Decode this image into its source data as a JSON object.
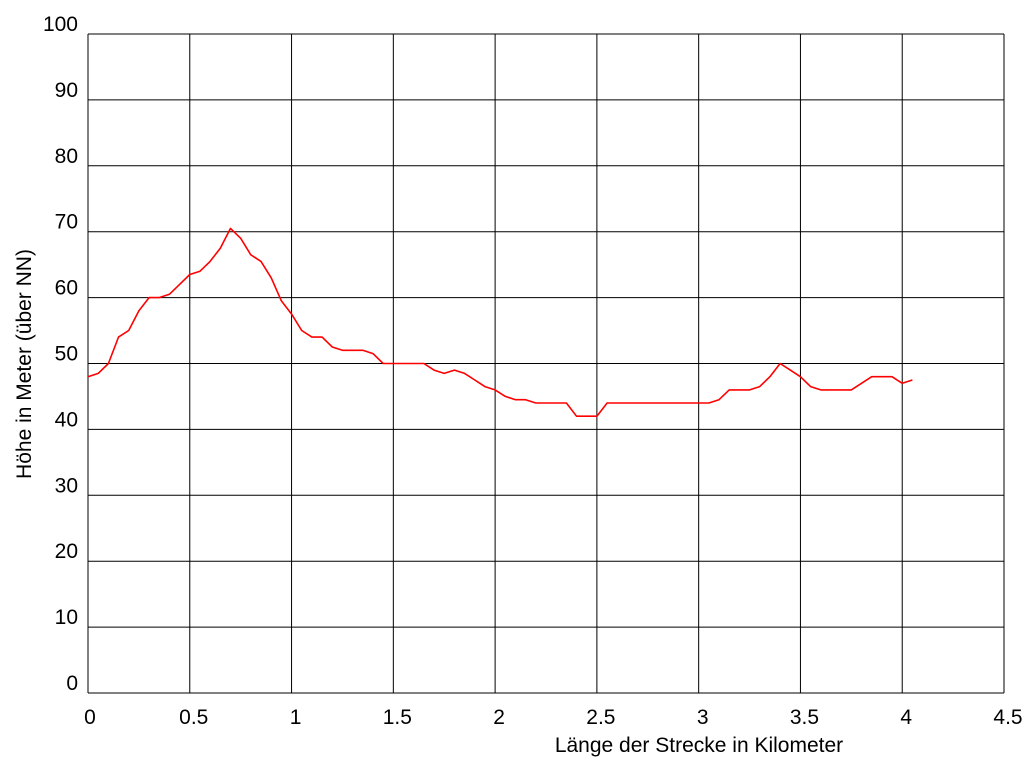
{
  "chart_data": {
    "type": "line",
    "title": "",
    "xlabel": "Länge der Strecke in Kilometer",
    "ylabel": "Höhe in Meter (über NN)",
    "xlim": [
      0,
      4.5
    ],
    "ylim": [
      0,
      100
    ],
    "x_ticks": [
      "0",
      "0.5",
      "1",
      "1.5",
      "2",
      "2.5",
      "3",
      "3.5",
      "4",
      "4.5"
    ],
    "y_ticks": [
      "0",
      "10",
      "20",
      "30",
      "40",
      "50",
      "60",
      "70",
      "80",
      "90",
      "100"
    ],
    "grid": true,
    "line_color": "#ff0000",
    "grid_color": "#000000",
    "series": [
      {
        "x": [
          0,
          0.05,
          0.1,
          0.15,
          0.2,
          0.25,
          0.3,
          0.35,
          0.4,
          0.45,
          0.5,
          0.55,
          0.6,
          0.65,
          0.7,
          0.75,
          0.8,
          0.85,
          0.9,
          0.95,
          1.0,
          1.05,
          1.1,
          1.15,
          1.2,
          1.25,
          1.3,
          1.35,
          1.4,
          1.45,
          1.5,
          1.55,
          1.6,
          1.65,
          1.7,
          1.75,
          1.8,
          1.85,
          1.9,
          1.95,
          2.0,
          2.05,
          2.1,
          2.15,
          2.2,
          2.25,
          2.3,
          2.35,
          2.4,
          2.45,
          2.5,
          2.55,
          2.6,
          2.65,
          2.7,
          2.75,
          2.8,
          2.85,
          2.9,
          2.95,
          3.0,
          3.05,
          3.1,
          3.15,
          3.2,
          3.25,
          3.3,
          3.35,
          3.4,
          3.45,
          3.5,
          3.55,
          3.6,
          3.65,
          3.7,
          3.75,
          3.8,
          3.85,
          3.9,
          3.95,
          4.0,
          4.05
        ],
        "y": [
          48,
          48.5,
          50,
          54,
          55,
          58,
          60,
          60,
          60.5,
          62,
          63.5,
          64,
          65.5,
          67.5,
          70.5,
          69,
          66.5,
          65.5,
          63,
          59.5,
          57.5,
          55,
          54,
          54,
          52.5,
          52,
          52,
          52,
          51.5,
          50,
          50,
          50,
          50,
          50,
          49,
          48.5,
          49,
          48.5,
          47.5,
          46.5,
          46,
          45,
          44.5,
          44.5,
          44,
          44,
          44,
          44,
          42,
          42,
          42,
          44,
          44,
          44,
          44,
          44,
          44,
          44,
          44,
          44,
          44,
          44,
          44.5,
          46,
          46,
          46,
          46.5,
          48,
          50,
          49,
          48,
          46.5,
          46,
          46,
          46,
          46,
          47,
          48,
          48,
          48,
          47,
          47.5
        ]
      }
    ]
  }
}
